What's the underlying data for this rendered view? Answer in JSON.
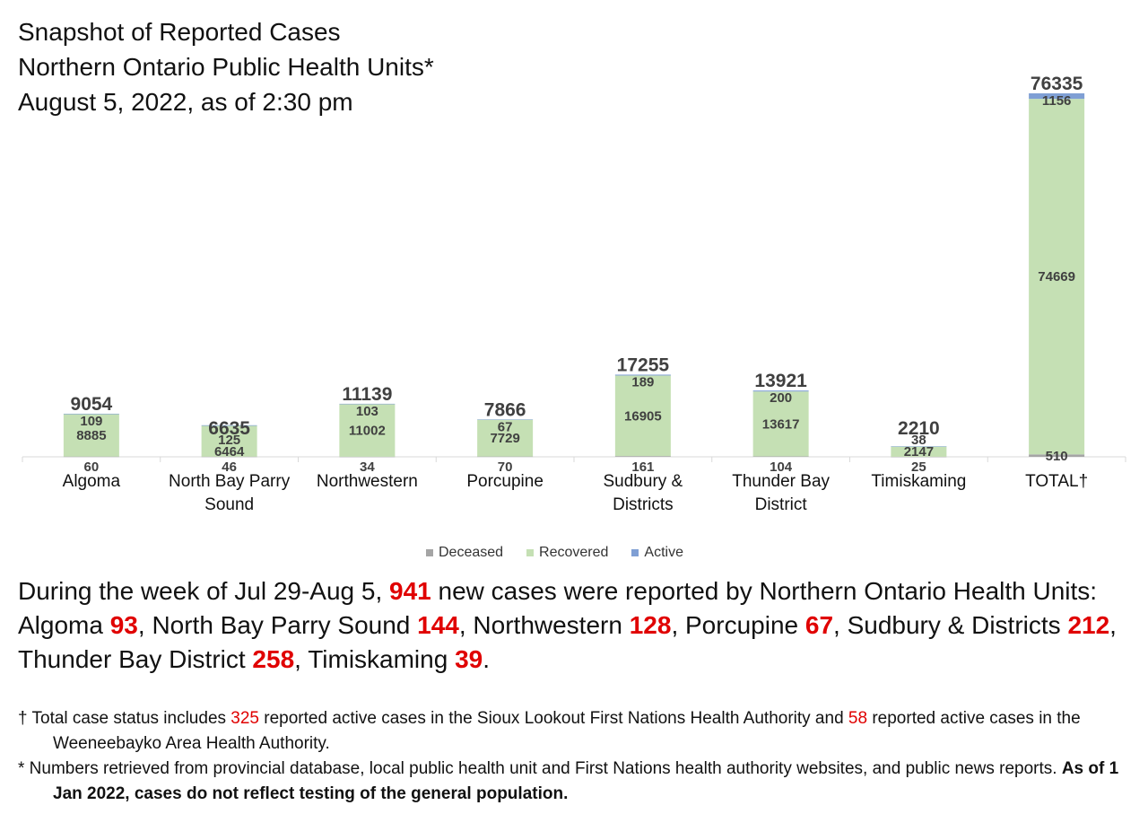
{
  "title_lines": [
    "Snapshot of Reported Cases",
    "Northern Ontario Public Health Units*",
    "August 5, 2022, as of 2:30 pm"
  ],
  "chart_data": {
    "type": "bar",
    "stacked": true,
    "categories": [
      [
        "Algoma"
      ],
      [
        "North Bay Parry",
        "Sound"
      ],
      [
        "Northwestern"
      ],
      [
        "Porcupine"
      ],
      [
        "Sudbury &",
        "Districts"
      ],
      [
        "Thunder Bay",
        "District"
      ],
      [
        "Timiskaming"
      ],
      [
        "TOTAL†"
      ]
    ],
    "totals": [
      9054,
      6635,
      11139,
      7866,
      17255,
      13921,
      2210,
      76335
    ],
    "series": [
      {
        "name": "Deceased",
        "color": "#a5a5a5",
        "values": [
          60,
          46,
          34,
          70,
          161,
          104,
          25,
          510
        ]
      },
      {
        "name": "Recovered",
        "color": "#c5e0b4",
        "values": [
          8885,
          6464,
          11002,
          7729,
          16905,
          13617,
          2147,
          74669
        ]
      },
      {
        "name": "Active",
        "color": "#7f9fd4",
        "values": [
          109,
          125,
          103,
          67,
          189,
          200,
          38,
          1156
        ]
      }
    ],
    "legend_position": "bottom",
    "grid": false
  },
  "summary": {
    "intro": "During the week of Jul 29-Aug 5, ",
    "total_new": "941",
    "after_total": " new cases were reported by Northern Ontario Health Units: ",
    "units": [
      {
        "name": "Algoma ",
        "value": "93",
        "sep": ", "
      },
      {
        "name": "North Bay Parry Sound ",
        "value": "144",
        "sep": ", "
      },
      {
        "name": "Northwestern ",
        "value": "128",
        "sep": ", "
      },
      {
        "name": "Porcupine ",
        "value": "67",
        "sep": ", "
      },
      {
        "name": "Sudbury & Districts ",
        "value": "212",
        "sep": ", "
      },
      {
        "name": "Thunder Bay District ",
        "value": "258",
        "sep": ", "
      },
      {
        "name": "Timiskaming ",
        "value": "39",
        "sep": "."
      }
    ]
  },
  "footnotes": {
    "dagger": {
      "part1": "† Total case status includes ",
      "num1": "325",
      "part2": " reported active cases in the Sioux Lookout First Nations Health Authority and ",
      "num2": "58",
      "part3": " reported active cases in the Weeneebayko Area Health Authority."
    },
    "star": {
      "part1": "* Numbers retrieved from provincial database, local public health unit and First Nations health authority websites, and public news reports. ",
      "bold": "As of 1 Jan 2022, cases do not reflect testing of the general population."
    }
  }
}
